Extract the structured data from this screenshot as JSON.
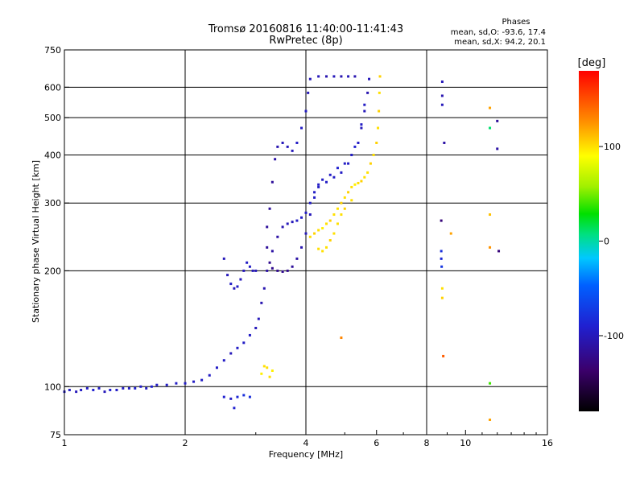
{
  "chart_data": {
    "type": "scatter",
    "title": "Tromsø 20160816 11:40:00-11:41:43",
    "subtitle": "RwPretec (8p)",
    "xlabel": "Frequency [MHz]",
    "ylabel": "Stationary phase Virtual Height [km]",
    "x_scale": "log",
    "y_scale": "log",
    "xlim": [
      1,
      16
    ],
    "ylim": [
      75,
      750
    ],
    "x_ticks": [
      1,
      2,
      4,
      6,
      8,
      10,
      16
    ],
    "x_tick_labels": [
      "1",
      "2",
      "4",
      "6",
      "8",
      "10",
      "16"
    ],
    "x_gridlines": [
      2,
      4,
      8
    ],
    "y_ticks": [
      75,
      100,
      200,
      300,
      400,
      500,
      600,
      750
    ],
    "y_tick_labels": [
      "75",
      "100",
      "200",
      "300",
      "400",
      "500",
      "600",
      "750"
    ],
    "y_gridlines": [
      100,
      200,
      300,
      400,
      500,
      600
    ],
    "stats": {
      "heading": "Phases",
      "line_o": "mean, sd,O: -93.6, 17.4",
      "line_x": "mean, sd,X:  94.2, 20.1"
    },
    "colorbar": {
      "label": "[deg]",
      "range": [
        -180,
        180
      ],
      "ticks": [
        100,
        0,
        -100
      ],
      "tick_labels": [
        "100",
        "0",
        "-100"
      ]
    },
    "series": [
      {
        "name": "",
        "points": [
          [
            1.0,
            97,
            -95
          ],
          [
            1.03,
            98,
            -95
          ],
          [
            1.07,
            97,
            -100
          ],
          [
            1.1,
            98,
            -95
          ],
          [
            1.14,
            99,
            -95
          ],
          [
            1.18,
            98,
            -90
          ],
          [
            1.22,
            99,
            -95
          ],
          [
            1.26,
            97,
            -100
          ],
          [
            1.3,
            98,
            -90
          ],
          [
            1.35,
            98,
            -95
          ],
          [
            1.4,
            99,
            -95
          ],
          [
            1.45,
            99,
            -95
          ],
          [
            1.5,
            99,
            -90
          ],
          [
            1.55,
            100,
            -95
          ],
          [
            1.6,
            99,
            -95
          ],
          [
            1.65,
            100,
            -90
          ],
          [
            1.7,
            101,
            -95
          ],
          [
            1.8,
            101,
            -95
          ],
          [
            1.9,
            102,
            -95
          ],
          [
            2.0,
            102,
            -95
          ],
          [
            2.1,
            103,
            -95
          ],
          [
            2.2,
            104,
            -95
          ],
          [
            2.3,
            107,
            -95
          ],
          [
            2.4,
            112,
            -95
          ],
          [
            2.5,
            117,
            -95
          ],
          [
            2.6,
            122,
            -100
          ],
          [
            2.7,
            126,
            -95
          ],
          [
            2.8,
            130,
            -95
          ],
          [
            2.9,
            136,
            -95
          ],
          [
            3.0,
            142,
            -100
          ],
          [
            3.05,
            150,
            -100
          ],
          [
            3.1,
            165,
            -105
          ],
          [
            3.15,
            180,
            -105
          ],
          [
            3.2,
            200,
            -110
          ],
          [
            3.3,
            225,
            -110
          ],
          [
            3.4,
            245,
            -110
          ],
          [
            3.5,
            260,
            -105
          ],
          [
            3.6,
            265,
            -100
          ],
          [
            3.7,
            268,
            -100
          ],
          [
            3.8,
            270,
            -95
          ],
          [
            3.9,
            275,
            -95
          ],
          [
            4.0,
            283,
            -95
          ],
          [
            4.1,
            300,
            -95
          ],
          [
            4.2,
            320,
            -95
          ],
          [
            4.3,
            335,
            -95
          ],
          [
            4.4,
            345,
            -95
          ],
          [
            4.6,
            355,
            -95
          ],
          [
            4.8,
            370,
            -90
          ],
          [
            5.0,
            380,
            -95
          ],
          [
            5.2,
            400,
            -95
          ],
          [
            5.4,
            430,
            -95
          ],
          [
            5.5,
            470,
            -100
          ],
          [
            5.6,
            520,
            -100
          ],
          [
            5.7,
            580,
            -105
          ],
          [
            5.75,
            630,
            -100
          ],
          [
            3.2,
            260,
            -115
          ],
          [
            3.25,
            290,
            -115
          ],
          [
            3.3,
            340,
            -115
          ],
          [
            3.35,
            390,
            -110
          ],
          [
            3.4,
            420,
            -105
          ],
          [
            3.5,
            430,
            -100
          ],
          [
            3.6,
            420,
            -100
          ],
          [
            3.7,
            410,
            -100
          ],
          [
            3.8,
            430,
            -95
          ],
          [
            3.9,
            470,
            -95
          ],
          [
            4.0,
            520,
            -95
          ],
          [
            4.05,
            580,
            -100
          ],
          [
            4.1,
            630,
            -100
          ],
          [
            4.3,
            640,
            -100
          ],
          [
            4.5,
            640,
            -105
          ],
          [
            4.7,
            640,
            -100
          ],
          [
            4.9,
            640,
            -105
          ],
          [
            5.1,
            640,
            -100
          ],
          [
            5.3,
            640,
            -105
          ],
          [
            3.2,
            230,
            -115
          ],
          [
            3.25,
            210,
            -120
          ],
          [
            3.3,
            203,
            -120
          ],
          [
            3.4,
            200,
            -120
          ],
          [
            3.5,
            199,
            -120
          ],
          [
            3.6,
            200,
            -120
          ],
          [
            3.7,
            205,
            -115
          ],
          [
            3.8,
            215,
            -110
          ],
          [
            3.9,
            230,
            -105
          ],
          [
            4.0,
            250,
            -100
          ],
          [
            4.1,
            280,
            -100
          ],
          [
            4.2,
            310,
            -95
          ],
          [
            4.3,
            330,
            -95
          ],
          [
            4.5,
            340,
            -95
          ],
          [
            4.7,
            350,
            -95
          ],
          [
            4.9,
            360,
            -95
          ],
          [
            5.1,
            380,
            -95
          ],
          [
            5.3,
            420,
            -90
          ],
          [
            5.5,
            480,
            -95
          ],
          [
            5.6,
            540,
            -95
          ],
          [
            2.5,
            215,
            -100
          ],
          [
            2.55,
            195,
            -100
          ],
          [
            2.6,
            185,
            -95
          ],
          [
            2.65,
            180,
            -100
          ],
          [
            2.7,
            182,
            -95
          ],
          [
            2.75,
            190,
            -100
          ],
          [
            2.8,
            200,
            -100
          ],
          [
            2.85,
            210,
            -95
          ],
          [
            2.9,
            205,
            -95
          ],
          [
            2.95,
            200,
            -100
          ],
          [
            3.0,
            200,
            -100
          ],
          [
            2.5,
            94,
            -90
          ],
          [
            2.6,
            93,
            -95
          ],
          [
            2.7,
            94,
            -85
          ],
          [
            2.8,
            95,
            -80
          ],
          [
            2.9,
            94,
            -80
          ],
          [
            2.65,
            88,
            -90
          ],
          [
            8.75,
            620,
            -100
          ],
          [
            8.75,
            570,
            -105
          ],
          [
            8.75,
            540,
            -100
          ],
          [
            8.85,
            430,
            -110
          ],
          [
            8.7,
            270,
            -130
          ],
          [
            8.7,
            225,
            -80
          ],
          [
            8.7,
            215,
            -85
          ],
          [
            8.72,
            205,
            -75
          ],
          [
            12.0,
            490,
            -115
          ],
          [
            12.0,
            415,
            -110
          ],
          [
            12.1,
            225,
            -130
          ]
        ]
      },
      {
        "name": "",
        "points": [
          [
            4.1,
            245,
            100
          ],
          [
            4.2,
            250,
            105
          ],
          [
            4.3,
            255,
            100
          ],
          [
            4.4,
            258,
            95
          ],
          [
            4.5,
            265,
            100
          ],
          [
            4.6,
            270,
            105
          ],
          [
            4.7,
            280,
            100
          ],
          [
            4.8,
            290,
            100
          ],
          [
            4.9,
            300,
            105
          ],
          [
            5.0,
            310,
            100
          ],
          [
            5.1,
            320,
            105
          ],
          [
            5.2,
            330,
            100
          ],
          [
            5.3,
            335,
            95
          ],
          [
            5.4,
            338,
            100
          ],
          [
            5.5,
            342,
            105
          ],
          [
            5.6,
            350,
            100
          ],
          [
            5.7,
            360,
            100
          ],
          [
            5.8,
            380,
            105
          ],
          [
            5.9,
            400,
            100
          ],
          [
            6.0,
            430,
            105
          ],
          [
            6.05,
            470,
            100
          ],
          [
            6.08,
            520,
            105
          ],
          [
            6.1,
            580,
            100
          ],
          [
            6.12,
            640,
            105
          ],
          [
            4.3,
            228,
            100
          ],
          [
            4.4,
            225,
            100
          ],
          [
            4.5,
            230,
            100
          ],
          [
            4.6,
            240,
            105
          ],
          [
            4.7,
            250,
            100
          ],
          [
            4.8,
            265,
            100
          ],
          [
            4.9,
            280,
            100
          ],
          [
            5.0,
            290,
            105
          ],
          [
            5.2,
            305,
            100
          ],
          [
            3.1,
            108,
            95
          ],
          [
            3.2,
            112,
            100
          ],
          [
            3.3,
            110,
            95
          ],
          [
            3.15,
            113,
            100
          ],
          [
            3.25,
            106,
            100
          ],
          [
            8.75,
            180,
            100
          ],
          [
            8.75,
            170,
            105
          ],
          [
            8.8,
            120,
            145
          ],
          [
            9.2,
            250,
            120
          ],
          [
            11.5,
            530,
            120
          ],
          [
            11.5,
            280,
            110
          ],
          [
            11.5,
            230,
            125
          ],
          [
            11.5,
            82,
            120
          ],
          [
            11.5,
            102,
            40
          ],
          [
            11.5,
            470,
            10
          ],
          [
            4.9,
            134,
            130
          ]
        ]
      }
    ]
  }
}
